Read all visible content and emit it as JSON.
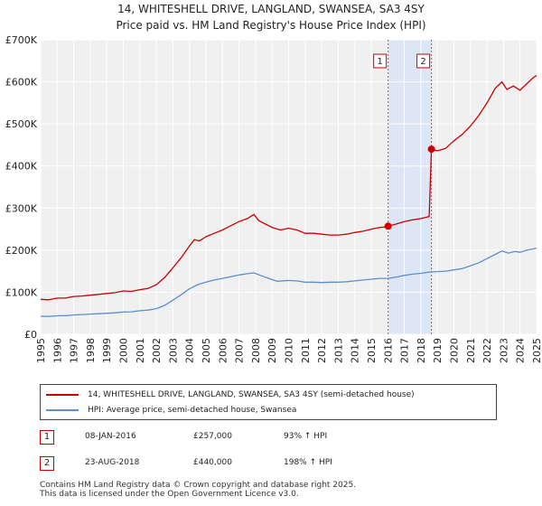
{
  "header": {
    "title": "14, WHITESHELL DRIVE, LANGLAND, SWANSEA, SA3 4SY",
    "subtitle": "Price paid vs. HM Land Registry's House Price Index (HPI)"
  },
  "chart_data": {
    "type": "line",
    "title": "14, WHITESHELL DRIVE, LANGLAND, SWANSEA, SA3 4SY",
    "subtitle": "Price paid vs. HM Land Registry's House Price Index (HPI)",
    "xlabel": "",
    "ylabel": "",
    "xlim": [
      1995.0,
      2025.0
    ],
    "ylim": [
      0,
      700000
    ],
    "y_ticks": [
      {
        "value": 0,
        "label": "£0"
      },
      {
        "value": 100000,
        "label": "£100K"
      },
      {
        "value": 200000,
        "label": "£200K"
      },
      {
        "value": 300000,
        "label": "£300K"
      },
      {
        "value": 400000,
        "label": "£400K"
      },
      {
        "value": 500000,
        "label": "£500K"
      },
      {
        "value": 600000,
        "label": "£600K"
      },
      {
        "value": 700000,
        "label": "£700K"
      }
    ],
    "x_ticks": [
      "1995",
      "1996",
      "1997",
      "1998",
      "1999",
      "2000",
      "2001",
      "2002",
      "2003",
      "2004",
      "2005",
      "2006",
      "2007",
      "2008",
      "2009",
      "2010",
      "2011",
      "2012",
      "2013",
      "2014",
      "2015",
      "2016",
      "2017",
      "2018",
      "2019",
      "2020",
      "2021",
      "2022",
      "2023",
      "2024",
      "2025"
    ],
    "grid": true,
    "shaded_span": [
      2016.02,
      2018.64
    ],
    "series": [
      {
        "name": "14, WHITESHELL DRIVE, LANGLAND, SWANSEA, SA3 4SY (semi-detached house)",
        "color": "#cc0000",
        "x": [
          1995.0,
          1995.5,
          1996.0,
          1996.5,
          1997.0,
          1997.5,
          1998.0,
          1998.5,
          1999.0,
          1999.5,
          2000.0,
          2000.5,
          2001.0,
          2001.5,
          2002.0,
          2002.5,
          2003.0,
          2003.5,
          2004.0,
          2004.3,
          2004.6,
          2005.0,
          2005.5,
          2006.0,
          2006.5,
          2007.0,
          2007.5,
          2007.9,
          2008.2,
          2008.6,
          2009.0,
          2009.5,
          2010.0,
          2010.5,
          2011.0,
          2011.5,
          2012.0,
          2012.5,
          2013.0,
          2013.5,
          2014.0,
          2014.5,
          2015.0,
          2015.5,
          2016.0,
          2016.02,
          2016.5,
          2017.0,
          2017.5,
          2018.0,
          2018.5,
          2018.64,
          2019.0,
          2019.5,
          2020.0,
          2020.5,
          2021.0,
          2021.5,
          2022.0,
          2022.5,
          2022.9,
          2023.2,
          2023.6,
          2024.0,
          2024.4,
          2024.8,
          2025.0
        ],
        "y": [
          83000,
          82000,
          86000,
          86000,
          90000,
          91000,
          93000,
          95000,
          97000,
          99000,
          103000,
          102000,
          106000,
          109000,
          118000,
          135000,
          158000,
          182000,
          210000,
          225000,
          222000,
          232000,
          240000,
          248000,
          258000,
          268000,
          275000,
          285000,
          270000,
          262000,
          254000,
          248000,
          252000,
          248000,
          240000,
          240000,
          238000,
          236000,
          236000,
          238000,
          242000,
          245000,
          250000,
          254000,
          255000,
          257000,
          262000,
          268000,
          272000,
          275000,
          280000,
          440000,
          436000,
          442000,
          460000,
          475000,
          495000,
          520000,
          550000,
          585000,
          600000,
          582000,
          590000,
          580000,
          595000,
          610000,
          615000
        ]
      },
      {
        "name": "HPI: Average price, semi-detached house, Swansea",
        "color": "#5b8fd0",
        "x": [
          1995.0,
          1995.5,
          1996.0,
          1996.5,
          1997.0,
          1997.5,
          1998.0,
          1998.5,
          1999.0,
          1999.5,
          2000.0,
          2000.5,
          2001.0,
          2001.5,
          2002.0,
          2002.5,
          2003.0,
          2003.5,
          2004.0,
          2004.5,
          2005.0,
          2005.5,
          2006.0,
          2006.5,
          2007.0,
          2007.5,
          2007.9,
          2008.3,
          2008.8,
          2009.3,
          2010.0,
          2010.5,
          2011.0,
          2011.5,
          2012.0,
          2012.5,
          2013.0,
          2013.5,
          2014.0,
          2014.5,
          2015.0,
          2015.5,
          2016.0,
          2016.5,
          2017.0,
          2017.5,
          2018.0,
          2018.5,
          2019.0,
          2019.5,
          2020.0,
          2020.5,
          2021.0,
          2021.5,
          2022.0,
          2022.5,
          2022.9,
          2023.3,
          2023.7,
          2024.0,
          2024.4,
          2024.8,
          2025.0
        ],
        "y": [
          43000,
          42500,
          44000,
          44500,
          46000,
          47000,
          48000,
          49000,
          50000,
          51000,
          53000,
          53500,
          56000,
          57500,
          61000,
          69000,
          81000,
          94000,
          108000,
          118000,
          124000,
          129000,
          133000,
          137000,
          141000,
          144000,
          146000,
          140000,
          133000,
          126000,
          128000,
          127000,
          124000,
          124000,
          123000,
          124000,
          124000,
          125000,
          127000,
          129000,
          131000,
          133000,
          133000,
          136000,
          140000,
          143000,
          145000,
          148000,
          149000,
          150000,
          153000,
          156000,
          163000,
          170000,
          180000,
          190000,
          198000,
          193000,
          197000,
          195000,
          200000,
          203000,
          205000
        ]
      }
    ],
    "markers": [
      {
        "label": "1",
        "x": 2016.02,
        "y": 257000
      },
      {
        "label": "2",
        "x": 2018.64,
        "y": 440000
      }
    ]
  },
  "legend": {
    "items": [
      {
        "label": "14, WHITESHELL DRIVE, LANGLAND, SWANSEA, SA3 4SY (semi-detached house)",
        "color": "#cc0000"
      },
      {
        "label": "HPI: Average price, semi-detached house, Swansea",
        "color": "#5b8fd0"
      }
    ]
  },
  "transactions": [
    {
      "num": "1",
      "date": "08-JAN-2016",
      "price": "£257,000",
      "hpi": "93% ↑ HPI"
    },
    {
      "num": "2",
      "date": "23-AUG-2018",
      "price": "£440,000",
      "hpi": "198% ↑ HPI"
    }
  ],
  "footer": {
    "line1": "Contains HM Land Registry data © Crown copyright and database right 2025.",
    "line2": "This data is licensed under the Open Government Licence v3.0."
  }
}
